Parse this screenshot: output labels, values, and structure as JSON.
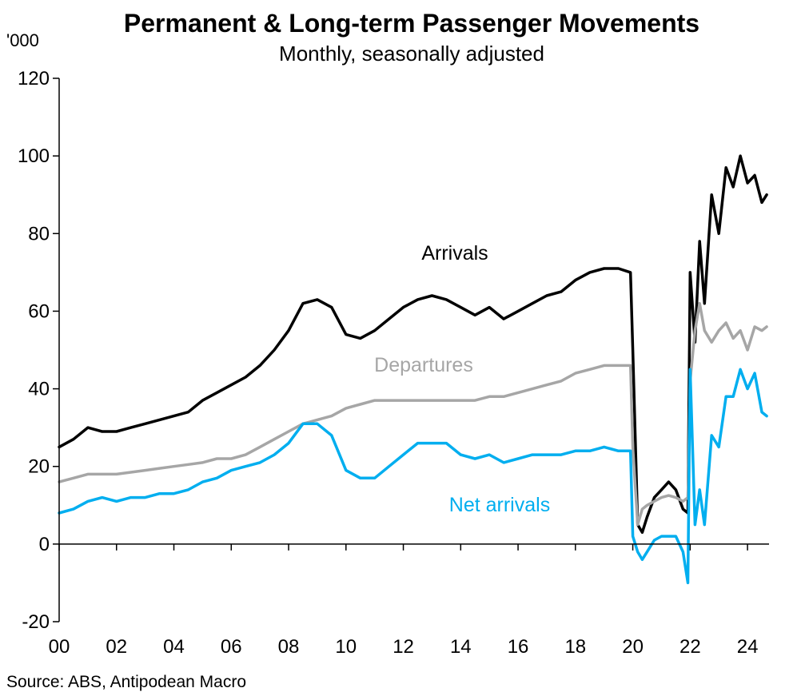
{
  "chart_data": {
    "type": "line",
    "title": "Permanent & Long-term Passenger Movements",
    "subtitle": "Monthly, seasonally adjusted",
    "y_unit": "'000",
    "source": "Source: ABS, Antipodean Macro",
    "xlim": [
      2000,
      2024.75
    ],
    "ylim": [
      -20,
      120
    ],
    "x_ticks": [
      2000,
      2002,
      2004,
      2006,
      2008,
      2010,
      2012,
      2014,
      2016,
      2018,
      2020,
      2022,
      2024
    ],
    "x_tick_labels": [
      "00",
      "02",
      "04",
      "06",
      "08",
      "10",
      "12",
      "14",
      "16",
      "18",
      "20",
      "22",
      "24"
    ],
    "y_ticks": [
      -20,
      0,
      20,
      40,
      60,
      80,
      100,
      120
    ],
    "y_tick_labels": [
      "-20",
      "0",
      "20",
      "40",
      "60",
      "80",
      "100",
      "120"
    ],
    "grid": false,
    "legend": "inline labels",
    "series": [
      {
        "name": "Arrivals",
        "color": "#000000",
        "x": [
          2000.0,
          2000.5,
          2001.0,
          2001.5,
          2002.0,
          2002.5,
          2003.0,
          2003.5,
          2004.0,
          2004.5,
          2005.0,
          2005.5,
          2006.0,
          2006.5,
          2007.0,
          2007.5,
          2008.0,
          2008.5,
          2009.0,
          2009.5,
          2010.0,
          2010.5,
          2011.0,
          2011.5,
          2012.0,
          2012.5,
          2013.0,
          2013.5,
          2014.0,
          2014.5,
          2015.0,
          2015.5,
          2016.0,
          2016.5,
          2017.0,
          2017.5,
          2018.0,
          2018.5,
          2019.0,
          2019.5,
          2019.92,
          2020.0,
          2020.17,
          2020.33,
          2020.5,
          2020.75,
          2021.0,
          2021.25,
          2021.5,
          2021.75,
          2021.92,
          2022.0,
          2022.17,
          2022.33,
          2022.5,
          2022.75,
          2023.0,
          2023.25,
          2023.5,
          2023.75,
          2024.0,
          2024.25,
          2024.5,
          2024.67
        ],
        "values": [
          25,
          27,
          30,
          29,
          29,
          30,
          31,
          32,
          33,
          34,
          37,
          39,
          41,
          43,
          46,
          50,
          55,
          62,
          63,
          61,
          54,
          53,
          55,
          58,
          61,
          63,
          64,
          63,
          61,
          59,
          61,
          58,
          60,
          62,
          64,
          65,
          68,
          70,
          71,
          71,
          70,
          50,
          5,
          3,
          7,
          12,
          14,
          16,
          14,
          9,
          8,
          70,
          52,
          78,
          62,
          90,
          80,
          97,
          92,
          100,
          93,
          95,
          88,
          90
        ]
      },
      {
        "name": "Departures",
        "color": "#a6a6a6",
        "x": [
          2000.0,
          2000.5,
          2001.0,
          2001.5,
          2002.0,
          2002.5,
          2003.0,
          2003.5,
          2004.0,
          2004.5,
          2005.0,
          2005.5,
          2006.0,
          2006.5,
          2007.0,
          2007.5,
          2008.0,
          2008.5,
          2009.0,
          2009.5,
          2010.0,
          2010.5,
          2011.0,
          2011.5,
          2012.0,
          2012.5,
          2013.0,
          2013.5,
          2014.0,
          2014.5,
          2015.0,
          2015.5,
          2016.0,
          2016.5,
          2017.0,
          2017.5,
          2018.0,
          2018.5,
          2019.0,
          2019.5,
          2019.92,
          2020.0,
          2020.17,
          2020.33,
          2020.5,
          2020.75,
          2021.0,
          2021.25,
          2021.5,
          2021.75,
          2021.92,
          2022.0,
          2022.17,
          2022.33,
          2022.5,
          2022.75,
          2023.0,
          2023.25,
          2023.5,
          2023.75,
          2024.0,
          2024.25,
          2024.5,
          2024.67
        ],
        "values": [
          16,
          17,
          18,
          18,
          18,
          18.5,
          19,
          19.5,
          20,
          20.5,
          21,
          22,
          22,
          23,
          25,
          27,
          29,
          31,
          32,
          33,
          35,
          36,
          37,
          37,
          37,
          37,
          37,
          37,
          37,
          37,
          38,
          38,
          39,
          40,
          41,
          42,
          44,
          45,
          46,
          46,
          46,
          25,
          5,
          9,
          10,
          11,
          12,
          12.5,
          12,
          11,
          12,
          42,
          55,
          62,
          55,
          52,
          55,
          57,
          53,
          55,
          50,
          56,
          55,
          56
        ]
      },
      {
        "name": "Net arrivals",
        "color": "#00aeef",
        "x": [
          2000.0,
          2000.5,
          2001.0,
          2001.5,
          2002.0,
          2002.5,
          2003.0,
          2003.5,
          2004.0,
          2004.5,
          2005.0,
          2005.5,
          2006.0,
          2006.5,
          2007.0,
          2007.5,
          2008.0,
          2008.5,
          2009.0,
          2009.5,
          2010.0,
          2010.5,
          2011.0,
          2011.5,
          2012.0,
          2012.5,
          2013.0,
          2013.5,
          2014.0,
          2014.5,
          2015.0,
          2015.5,
          2016.0,
          2016.5,
          2017.0,
          2017.5,
          2018.0,
          2018.5,
          2019.0,
          2019.5,
          2019.92,
          2020.0,
          2020.17,
          2020.33,
          2020.5,
          2020.75,
          2021.0,
          2021.25,
          2021.5,
          2021.75,
          2021.92,
          2022.0,
          2022.17,
          2022.33,
          2022.5,
          2022.75,
          2023.0,
          2023.25,
          2023.5,
          2023.75,
          2024.0,
          2024.25,
          2024.5,
          2024.67
        ],
        "values": [
          8,
          9,
          11,
          12,
          11,
          12,
          12,
          13,
          13,
          14,
          16,
          17,
          19,
          20,
          21,
          23,
          26,
          31,
          31,
          28,
          19,
          17,
          17,
          20,
          23,
          26,
          26,
          26,
          23,
          22,
          23,
          21,
          22,
          23,
          23,
          23,
          24,
          24,
          25,
          24,
          24,
          2,
          -2,
          -4,
          -2,
          1,
          2,
          2,
          2,
          -2,
          -10,
          45,
          5,
          14,
          5,
          28,
          25,
          38,
          38,
          45,
          40,
          44,
          34,
          33
        ]
      }
    ],
    "annotations": [
      "Arrivals",
      "Departures",
      "Net arrivals"
    ]
  }
}
